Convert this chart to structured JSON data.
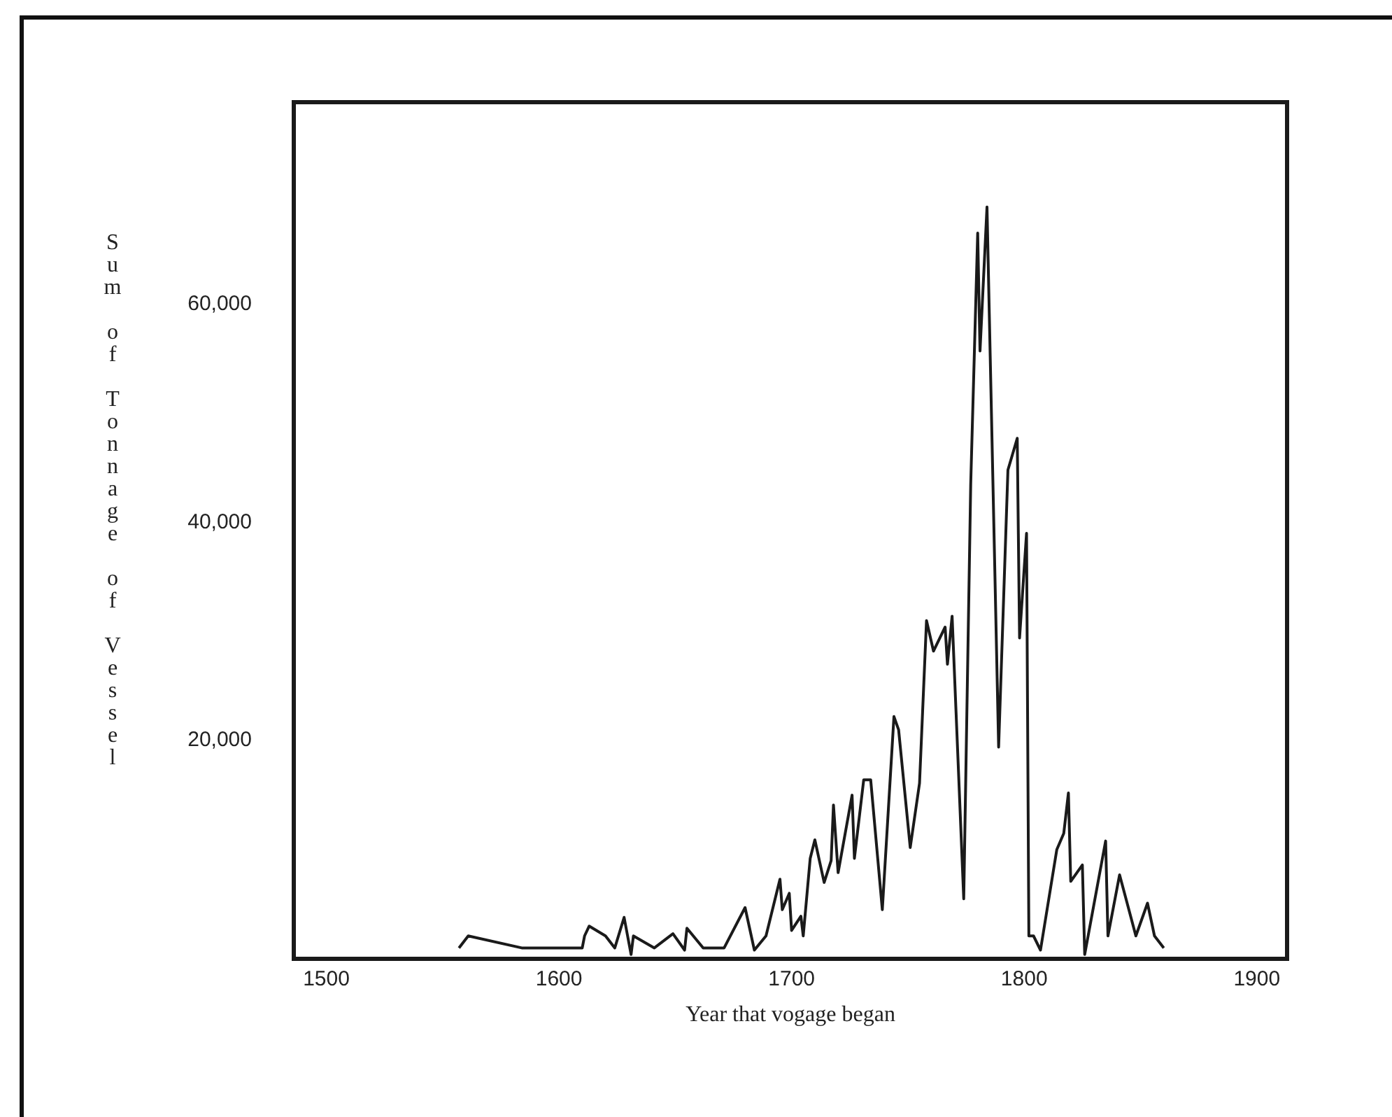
{
  "chart_data": {
    "type": "line",
    "xlabel": "Year that vogage began",
    "ylabel": "Sum of Tonnage of Vessel",
    "x": [
      1557,
      1561,
      1584,
      1610,
      1611,
      1613,
      1620,
      1624,
      1628,
      1631,
      1632,
      1641,
      1649,
      1654,
      1655,
      1662,
      1671,
      1680,
      1684,
      1689,
      1695,
      1696,
      1699,
      1700,
      1704,
      1705,
      1708,
      1710,
      1714,
      1717,
      1718,
      1720,
      1726,
      1727,
      1731,
      1734,
      1739,
      1744,
      1746,
      1751,
      1755,
      1758,
      1761,
      1766,
      1767,
      1769,
      1774,
      1777,
      1780,
      1781,
      1784,
      1789,
      1793,
      1797,
      1798,
      1801,
      1802,
      1804,
      1807,
      1814,
      1817,
      1819,
      1820,
      1825,
      1826,
      1835,
      1836,
      1841,
      1848,
      1853,
      1856,
      1860
    ],
    "series": [
      {
        "color": "#1a1a1a",
        "values": [
          1000,
          2100,
          1000,
          1000,
          2100,
          3000,
          2100,
          1000,
          3800,
          400,
          2100,
          1000,
          2300,
          800,
          2800,
          1000,
          1000,
          4700,
          800,
          2100,
          7300,
          4500,
          6000,
          2600,
          3900,
          2100,
          9200,
          10900,
          7000,
          9000,
          14100,
          7900,
          15000,
          9200,
          16400,
          16400,
          4500,
          22200,
          21000,
          10200,
          16100,
          31000,
          28200,
          30400,
          27000,
          31400,
          5500,
          43500,
          66500,
          55700,
          68900,
          19400,
          44800,
          47700,
          29400,
          39000,
          2100,
          2100,
          800,
          10000,
          11500,
          15200,
          7100,
          8600,
          400,
          10800,
          2100,
          7700,
          2100,
          5100,
          2100,
          1000
        ]
      }
    ],
    "xlim": [
      1486,
      1913
    ],
    "xticks": [
      1500,
      1600,
      1700,
      1800,
      1900
    ],
    "ylim": [
      0,
      78500
    ],
    "yticks": [
      {
        "value": 20000,
        "label": "20,000"
      },
      {
        "value": 40000,
        "label": "40,000"
      },
      {
        "value": 60000,
        "label": "60,000"
      }
    ],
    "grid": false,
    "legend": false,
    "marker": "none",
    "line_style": "solid"
  }
}
